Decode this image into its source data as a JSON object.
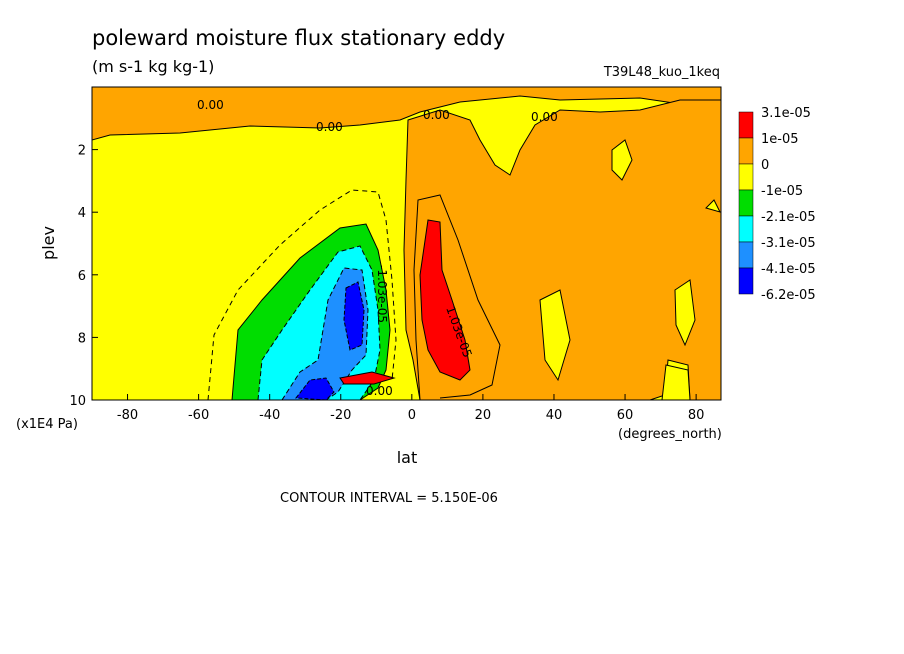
{
  "chart_data": {
    "type": "heatmap",
    "title": "poleward moisture flux stationary eddy",
    "units": "(m s-1 kg kg-1)",
    "run_label": "T39L48_kuo_1keq",
    "xlabel": "lat",
    "x_unit": "(degrees_north)",
    "ylabel": "plev",
    "y_unit": "(x1E4 Pa)",
    "xlim": [
      -90,
      87
    ],
    "ylim": [
      10,
      0
    ],
    "x_ticks": [
      "-80",
      "-60",
      "-40",
      "-20",
      "0",
      "20",
      "40",
      "60",
      "80"
    ],
    "y_ticks": [
      "2",
      "4",
      "6",
      "8",
      "10"
    ],
    "contour_interval_note": "CONTOUR INTERVAL = 5.150E-06",
    "legend": {
      "placement": "right",
      "levels": [
        "3.1e-05",
        "1e-05",
        "0",
        "-1e-05",
        "-2.1e-05",
        "-3.1e-05",
        "-4.1e-05",
        "-6.2e-05"
      ],
      "colors": [
        "#ff0000",
        "#ffa500",
        "#ffff00",
        "#00dd00",
        "#00ffff",
        "#1e90ff",
        "#0000ff"
      ]
    },
    "contour_labels": [
      "0.00",
      "0.00",
      "0.00",
      "0.00",
      "0.00",
      "-1.03e-05",
      "1.03e-05"
    ],
    "regions": [
      {
        "name": "positive-flux-upper",
        "value_range": "0 to 1e-05",
        "lat": [
          -90,
          87
        ],
        "plev": [
          0,
          1.5
        ]
      },
      {
        "name": "positive-flux-nh",
        "value_range": "0 to 1e-05",
        "lat": [
          0,
          87
        ],
        "plev": [
          0.5,
          10
        ]
      },
      {
        "name": "max-positive-core",
        "value_range": ">3.1e-05",
        "lat": [
          4,
          18
        ],
        "plev": [
          4.3,
          9.2
        ]
      },
      {
        "name": "negative-flux-sh",
        "value_range": "-2.1e-05 to -1e-05",
        "lat": [
          -50,
          -8
        ],
        "plev": [
          5,
          10
        ]
      },
      {
        "name": "strong-negative-core",
        "value_range": "<-4.1e-05",
        "lat": [
          -27,
          -10
        ],
        "plev": [
          5.5,
          10
        ]
      }
    ]
  }
}
